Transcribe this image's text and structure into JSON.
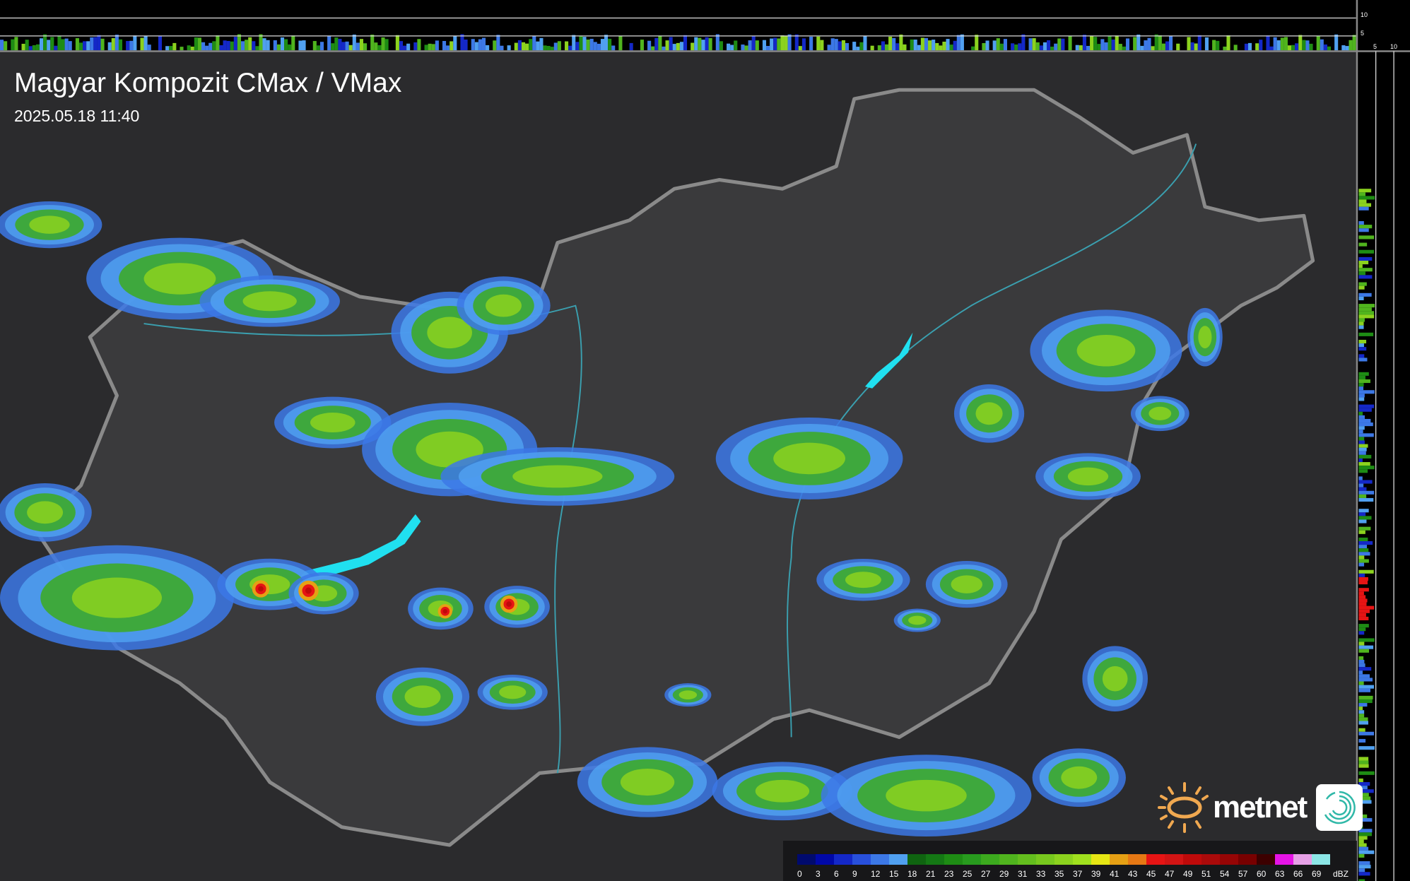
{
  "header": {
    "title": "Magyar Kompozit CMax / VMax",
    "timestamp": "2025.05.18 11:40"
  },
  "profile_scale": {
    "vertical_labels": [
      "10",
      "5"
    ],
    "horizontal_labels": [
      "5",
      "10"
    ]
  },
  "logo": {
    "text": "metnet",
    "sun_color": "#f0a850",
    "swirl_color": "#30b8a8"
  },
  "colors": {
    "background": "#2b2b2d",
    "country_fill": "#3a3a3c",
    "border": "#8a8a8a",
    "rivers": "#3aa0b0",
    "lake": "#20e0f0"
  },
  "legend": {
    "unit": "dBZ",
    "labels": [
      "0",
      "3",
      "6",
      "9",
      "12",
      "15",
      "18",
      "21",
      "23",
      "25",
      "27",
      "29",
      "31",
      "33",
      "35",
      "37",
      "39",
      "41",
      "43",
      "45",
      "47",
      "49",
      "51",
      "54",
      "57",
      "60",
      "63",
      "66",
      "69"
    ],
    "colors": [
      "#000a6e",
      "#0008a8",
      "#1428c8",
      "#2850dc",
      "#3c78e6",
      "#50a0f0",
      "#0f6410",
      "#147814",
      "#1e8c14",
      "#289b1e",
      "#3caa1e",
      "#50b41e",
      "#64be1e",
      "#78c81e",
      "#8cd21e",
      "#a0e01e",
      "#e6e614",
      "#e6a014",
      "#e67814",
      "#e61414",
      "#d21414",
      "#be0a0a",
      "#aa0a0a",
      "#960505",
      "#780000",
      "#3c0000",
      "#e614e6",
      "#e6a0e6",
      "#8ce6e6"
    ]
  }
}
